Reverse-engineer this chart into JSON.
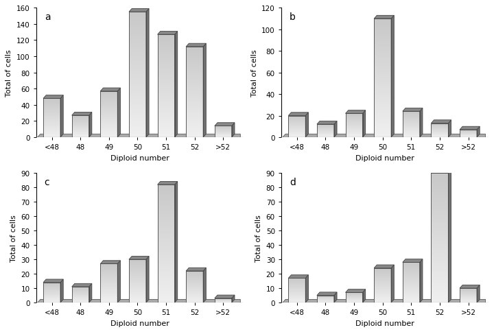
{
  "panels": [
    {
      "label": "a",
      "values": [
        48,
        27,
        57,
        155,
        127,
        112,
        14
      ],
      "ylim": [
        0,
        160
      ],
      "yticks": [
        0,
        20,
        40,
        60,
        80,
        100,
        120,
        140,
        160
      ]
    },
    {
      "label": "b",
      "values": [
        20,
        12,
        22,
        110,
        24,
        13,
        7
      ],
      "ylim": [
        0,
        120
      ],
      "yticks": [
        0,
        20,
        40,
        60,
        80,
        100,
        120
      ]
    },
    {
      "label": "c",
      "values": [
        14,
        11,
        27,
        30,
        82,
        22,
        3
      ],
      "ylim": [
        0,
        90
      ],
      "yticks": [
        0,
        10,
        20,
        30,
        40,
        50,
        60,
        70,
        80,
        90
      ]
    },
    {
      "label": "d",
      "values": [
        17,
        5,
        7,
        24,
        28,
        90,
        10
      ],
      "ylim": [
        0,
        90
      ],
      "yticks": [
        0,
        10,
        20,
        30,
        40,
        50,
        60,
        70,
        80,
        90
      ]
    }
  ],
  "categories": [
    "<48",
    "48",
    "49",
    "50",
    "51",
    "52",
    ">52"
  ],
  "xlabel": "Diploid number",
  "ylabel": "Total of cells",
  "bar_light": "#f0f0f0",
  "bar_mid": "#c8c8c8",
  "bar_dark": "#707070",
  "bar_top": "#888888",
  "edge_color": "#444444",
  "floor_color": "#aaaaaa",
  "background_color": "#ffffff",
  "fig_background": "#ffffff"
}
